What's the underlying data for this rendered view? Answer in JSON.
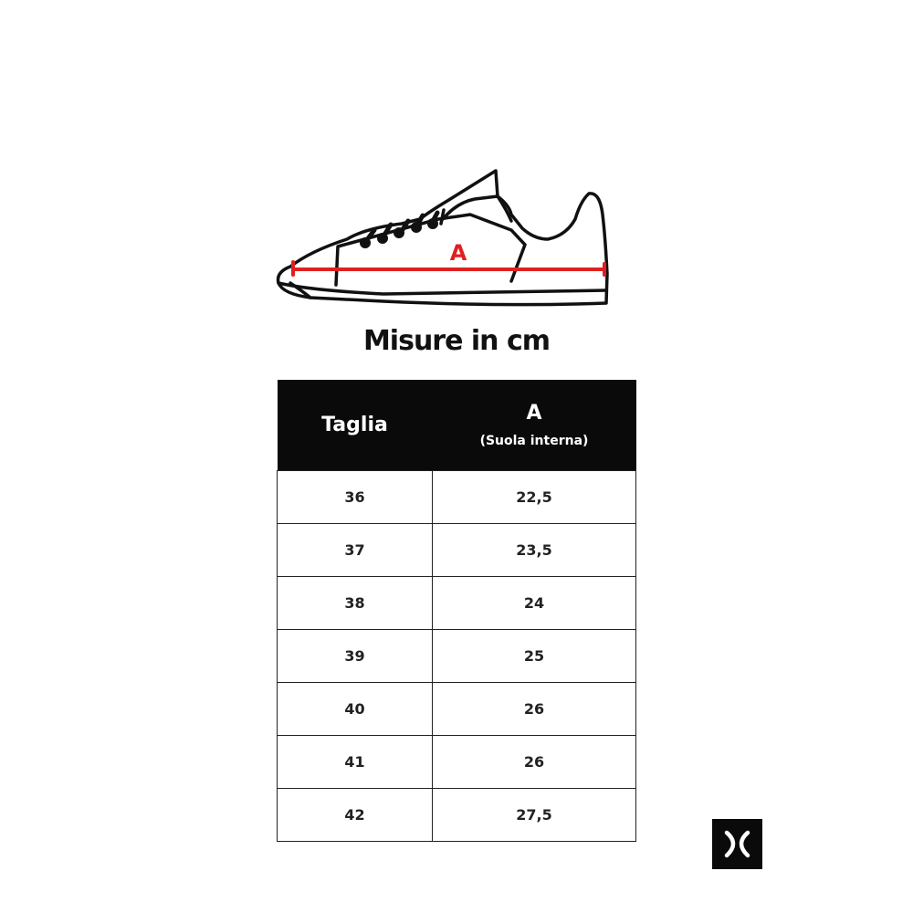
{
  "diagram": {
    "measure_label": "A",
    "measure_color": "#e02020"
  },
  "title": "Misure in cm",
  "table": {
    "headers": {
      "size": "Taglia",
      "a": "A",
      "a_sub": "(Suola interna)"
    },
    "rows": [
      {
        "size": "36",
        "a": "22,5"
      },
      {
        "size": "37",
        "a": "23,5"
      },
      {
        "size": "38",
        "a": "24"
      },
      {
        "size": "39",
        "a": "25"
      },
      {
        "size": "40",
        "a": "26"
      },
      {
        "size": "41",
        "a": "26"
      },
      {
        "size": "42",
        "a": "27,5"
      }
    ]
  },
  "logo": {
    "icon": "x-logo"
  }
}
